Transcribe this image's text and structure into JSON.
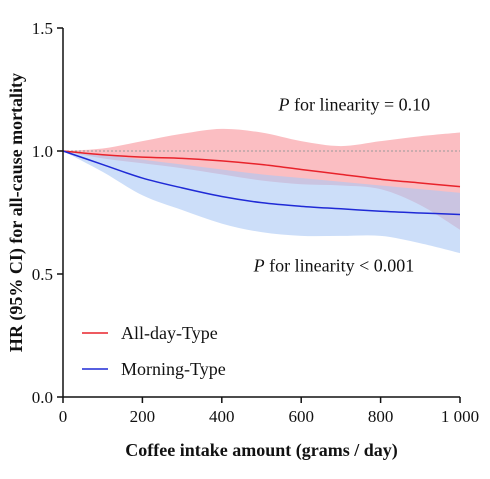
{
  "chart_data": {
    "type": "line",
    "title": "",
    "xlabel": "Coffee intake amount (grams / day)",
    "ylabel": "HR (95% CI) for all-cause mortality",
    "xlim": [
      0,
      1000
    ],
    "ylim": [
      0.0,
      1.5
    ],
    "x_ticks": [
      0,
      200,
      400,
      600,
      800,
      1000
    ],
    "x_tick_labels": [
      "0",
      "200",
      "400",
      "600",
      "800",
      "1 000"
    ],
    "y_ticks": [
      0.0,
      0.5,
      1.0,
      1.5
    ],
    "y_tick_labels": [
      "0.0",
      "0.5",
      "1.0",
      "1.5"
    ],
    "reference_line": 1.0,
    "legend_position": "bottom-left",
    "grid": false,
    "x": [
      0,
      100,
      200,
      300,
      400,
      500,
      600,
      700,
      800,
      900,
      1000
    ],
    "series": [
      {
        "name": "All-day-Type",
        "color": "#e8232b",
        "band_color": "#f9a8ad",
        "values": [
          1.0,
          0.985,
          0.975,
          0.97,
          0.96,
          0.945,
          0.925,
          0.905,
          0.885,
          0.87,
          0.855
        ],
        "lower": [
          1.0,
          0.97,
          0.95,
          0.93,
          0.905,
          0.88,
          0.865,
          0.86,
          0.845,
          0.78,
          0.68
        ],
        "upper": [
          1.0,
          1.01,
          1.04,
          1.07,
          1.09,
          1.075,
          1.04,
          1.02,
          1.04,
          1.06,
          1.075
        ]
      },
      {
        "name": "Morning-Type",
        "color": "#1f2ad6",
        "band_color": "#aac8f5",
        "values": [
          1.0,
          0.945,
          0.89,
          0.85,
          0.815,
          0.79,
          0.775,
          0.765,
          0.755,
          0.748,
          0.742
        ],
        "lower": [
          1.0,
          0.915,
          0.82,
          0.76,
          0.705,
          0.67,
          0.655,
          0.655,
          0.655,
          0.625,
          0.585
        ],
        "upper": [
          1.0,
          0.985,
          0.965,
          0.945,
          0.925,
          0.905,
          0.89,
          0.875,
          0.86,
          0.845,
          0.83
        ]
      }
    ],
    "annotations": [
      {
        "italic": "P",
        "text": " for linearity = 0.10",
        "x": 960,
        "y": 1.19
      },
      {
        "italic": "P",
        "text": " for linearity < 0.001",
        "x": 920,
        "y": 0.535
      }
    ]
  }
}
